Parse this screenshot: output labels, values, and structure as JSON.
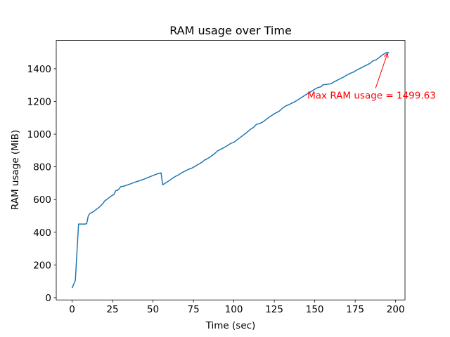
{
  "chart_data": {
    "type": "line",
    "title": "RAM usage over Time",
    "xlabel": "Time (sec)",
    "ylabel": "RAM usage (MiB)",
    "color": "#1f77b4",
    "x": [
      0,
      2,
      4,
      6,
      8,
      9,
      10,
      11,
      13,
      15,
      17,
      19,
      20,
      22,
      24,
      26,
      27,
      28,
      29,
      30,
      32,
      35,
      38,
      41,
      44,
      47,
      50,
      53,
      55,
      56,
      58,
      60,
      62,
      64,
      66,
      68,
      70,
      72,
      74,
      76,
      78,
      80,
      82,
      84,
      86,
      88,
      90,
      92,
      94,
      96,
      98,
      100,
      102,
      104,
      106,
      108,
      110,
      112,
      114,
      116,
      118,
      120,
      122,
      124,
      126,
      128,
      130,
      132,
      134,
      136,
      138,
      140,
      142,
      144,
      146,
      148,
      150,
      152,
      154,
      155,
      158,
      160,
      162,
      164,
      166,
      168,
      170,
      172,
      174,
      176,
      178,
      180,
      182,
      184,
      186,
      188,
      190,
      192,
      194,
      196
    ],
    "values": [
      59,
      105,
      450,
      450,
      450,
      452,
      500,
      515,
      525,
      540,
      555,
      575,
      590,
      605,
      620,
      632,
      655,
      655,
      665,
      678,
      682,
      692,
      703,
      713,
      723,
      735,
      747,
      758,
      763,
      690,
      703,
      715,
      730,
      742,
      752,
      765,
      775,
      785,
      792,
      803,
      815,
      826,
      842,
      852,
      865,
      880,
      898,
      908,
      918,
      930,
      943,
      950,
      965,
      980,
      995,
      1010,
      1028,
      1040,
      1060,
      1065,
      1075,
      1090,
      1105,
      1118,
      1130,
      1140,
      1158,
      1172,
      1180,
      1190,
      1200,
      1212,
      1225,
      1238,
      1250,
      1262,
      1275,
      1285,
      1290,
      1302,
      1305,
      1308,
      1320,
      1330,
      1340,
      1350,
      1362,
      1372,
      1380,
      1392,
      1402,
      1412,
      1422,
      1432,
      1448,
      1455,
      1470,
      1485,
      1498,
      1499.63
    ],
    "xlim": [
      -9.8,
      205.8
    ],
    "ylim": [
      -14,
      1573
    ],
    "xticks": [
      0,
      25,
      50,
      75,
      100,
      125,
      150,
      175,
      200
    ],
    "yticks": [
      0,
      200,
      400,
      600,
      800,
      1000,
      1200,
      1400
    ],
    "annotation": {
      "text": "Max RAM usage = 1499.63",
      "x": 195,
      "y": 1499.63,
      "color": "red"
    }
  }
}
